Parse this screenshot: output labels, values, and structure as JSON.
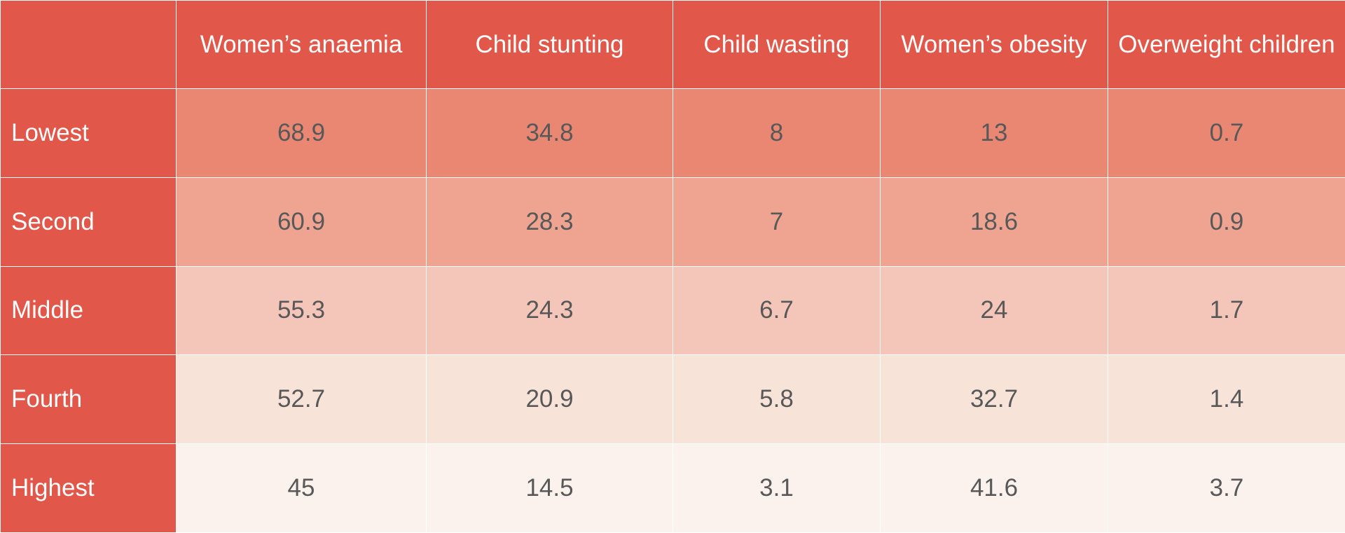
{
  "chart_data": {
    "type": "table",
    "columns": [
      "Women’s anaemia",
      "Child stunting",
      "Child wasting",
      "Women’s obesity",
      "Overweight children"
    ],
    "rows": [
      {
        "label": "Lowest",
        "values": [
          68.9,
          34.8,
          8,
          13,
          0.7
        ],
        "color": "#e98773"
      },
      {
        "label": "Second",
        "values": [
          60.9,
          28.3,
          7,
          18.6,
          0.9
        ],
        "color": "#eea491"
      },
      {
        "label": "Middle",
        "values": [
          55.3,
          24.3,
          6.7,
          24,
          1.7
        ],
        "color": "#f4c5b9"
      },
      {
        "label": "Fourth",
        "values": [
          52.7,
          20.9,
          5.8,
          32.7,
          1.4
        ],
        "color": "#f8e3d9"
      },
      {
        "label": "Highest",
        "values": [
          45,
          14.5,
          3.1,
          41.6,
          3.7
        ],
        "color": "#fcf2ed"
      }
    ]
  },
  "colors": {
    "header_bg": "#e15749",
    "header_text": "#ffffff",
    "cell_text": "#585858"
  }
}
